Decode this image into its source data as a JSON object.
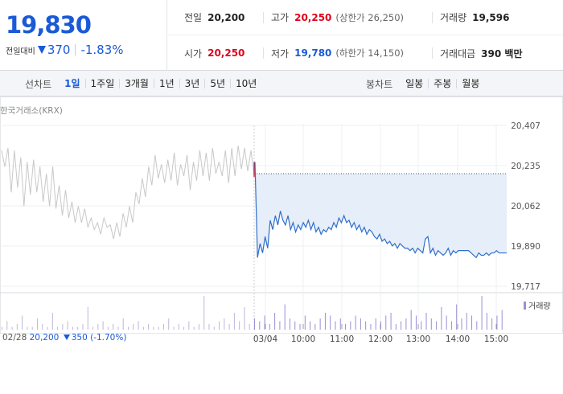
{
  "quote": {
    "current_price": "19,830",
    "change_label": "전일대비",
    "change_value": "370",
    "change_rate": "-1.83%",
    "prev_close_label": "전일",
    "prev_close": "20,200",
    "high_label": "고가",
    "high": "20,250",
    "upper_limit": "(상한가 26,250)",
    "volume_label": "거래량",
    "volume": "19,596",
    "open_label": "시가",
    "open": "20,250",
    "low_label": "저가",
    "low": "19,780",
    "lower_limit": "(하한가 14,150)",
    "amount_label": "거래대금",
    "amount": "390 백만"
  },
  "tabs": {
    "line_label": "선차트",
    "line_items": [
      "1일",
      "1주일",
      "3개월",
      "1년",
      "3년",
      "5년",
      "10년"
    ],
    "line_active": 0,
    "candle_label": "봉차트",
    "candle_items": [
      "일봉",
      "주봉",
      "월봉"
    ]
  },
  "chart": {
    "exchange": "한국거래소(KRX)",
    "volume_legend": "거래량",
    "prev_date": "02/28",
    "prev_price": "20,200",
    "prev_change": "350",
    "prev_rate": "(-1.70%)"
  },
  "colors": {
    "up": "#e0001b",
    "down": "#1a5ad6",
    "prev_line": "#c8c8c8",
    "area_fill": "#e6eefa",
    "volume": "#9b8fd6"
  },
  "chart_data": {
    "type": "line",
    "ylim": [
      19717,
      20407
    ],
    "y_ticks": [
      "20,407",
      "20,235",
      "20,062",
      "19,890",
      "19,717"
    ],
    "x_ticks": [
      "03/04",
      "10:00",
      "11:00",
      "12:00",
      "13:00",
      "14:00",
      "15:00"
    ],
    "reference_price": 20200,
    "series": [
      {
        "values": [
          20300,
          20230,
          20310,
          20120,
          20300,
          20140,
          20270,
          20060,
          20250,
          20110,
          20260,
          20120,
          20230,
          20080,
          20200,
          20060,
          20230,
          20050,
          20150,
          20020,
          20130,
          20010,
          20080,
          19990,
          20060,
          19990,
          20050,
          19970,
          20010,
          19960,
          19990,
          19940,
          20010,
          19970,
          19980,
          19920,
          19990,
          19930,
          20030,
          19970,
          20060,
          19990,
          20120,
          20070,
          20180,
          20100,
          20230,
          20150,
          20280,
          20180,
          20240,
          20160,
          20260,
          20170,
          20290,
          20150,
          20240,
          20190,
          20280,
          20130,
          20250,
          20170,
          20300,
          20190,
          20290,
          20170,
          20310,
          20200,
          20250,
          20190,
          20300,
          20160,
          20310,
          20190,
          20320,
          20220,
          20310,
          20210,
          20300,
          20190
        ],
        "name": "02/28"
      },
      {
        "values": [
          20250,
          19840,
          19900,
          19860,
          19930,
          19880,
          20000,
          19960,
          20020,
          19980,
          20040,
          20000,
          19980,
          20020,
          19960,
          19990,
          19950,
          19980,
          19960,
          19990,
          19970,
          20000,
          19960,
          19990,
          19950,
          19970,
          19940,
          19960,
          19950,
          19970,
          19960,
          19990,
          19970,
          20010,
          19990,
          20020,
          19990,
          20000,
          19970,
          19990,
          19960,
          19980,
          19950,
          19970,
          19940,
          19960,
          19950,
          19930,
          19920,
          19940,
          19910,
          19920,
          19900,
          19910,
          19890,
          19900,
          19880,
          19900,
          19890,
          19880,
          19880,
          19870,
          19880,
          19860,
          19880,
          19870,
          19860,
          19920,
          19930,
          19860,
          19880,
          19850,
          19870,
          19860,
          19850,
          19860,
          19880,
          19850,
          19870,
          19860,
          19870,
          19870,
          19870,
          19870,
          19870,
          19860,
          19850,
          19840,
          19860,
          19850,
          19850,
          19860,
          19850,
          19860,
          19860,
          19870,
          19860,
          19860,
          19860,
          19860
        ],
        "name": "03/04"
      }
    ],
    "volume": [
      1,
      3,
      1,
      2,
      5,
      1,
      1,
      4,
      2,
      1,
      6,
      1,
      2,
      3,
      1,
      1,
      2,
      8,
      1,
      2,
      3,
      1,
      2,
      1,
      4,
      1,
      2,
      3,
      1,
      2,
      1,
      1,
      2,
      4,
      1,
      2,
      1,
      3,
      1,
      2,
      12,
      2,
      1,
      3,
      4,
      2,
      6,
      3,
      8,
      2,
      4,
      3,
      5,
      2,
      6,
      3,
      9,
      4,
      3,
      2,
      5,
      3,
      2,
      4,
      6,
      5,
      3,
      4,
      2,
      3,
      5,
      4,
      3,
      2,
      4,
      3,
      5,
      6,
      2,
      3,
      4,
      7,
      5,
      3,
      6,
      4,
      3,
      8,
      5,
      3,
      9,
      4,
      6,
      5,
      3,
      12,
      6,
      4,
      5,
      7
    ]
  }
}
